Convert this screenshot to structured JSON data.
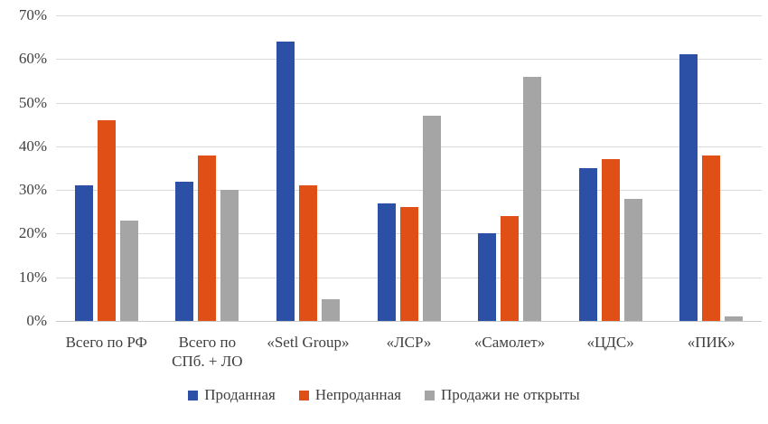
{
  "chart_data": {
    "type": "bar",
    "title": "",
    "xlabel": "",
    "ylabel": "",
    "ylim": [
      0,
      70
    ],
    "grid": true,
    "legend_position": "bottom",
    "y_tick_labels": [
      "70%",
      "60%",
      "50%",
      "40%",
      "30%",
      "20%",
      "10%",
      "0%"
    ],
    "categories": [
      "Всего по РФ",
      "Всего по\nСПб. + ЛО",
      "«Setl Group»",
      "«ЛСР»",
      "«Самолет»",
      "«ЦДС»",
      "«ПИК»"
    ],
    "series": [
      {
        "name": "Проданная",
        "color": "#2b50a5",
        "values": [
          31,
          32,
          64,
          27,
          20,
          35,
          61
        ]
      },
      {
        "name": "Непроданная",
        "color": "#e04f16",
        "values": [
          46,
          38,
          31,
          26,
          24,
          37,
          38
        ]
      },
      {
        "name": "Продажи не открыты",
        "color": "#a5a5a5",
        "values": [
          23,
          30,
          5,
          47,
          56,
          28,
          1
        ]
      }
    ],
    "colors": {
      "gridline": "#d9d9d9",
      "axis_line": "#c9c9c9",
      "text": "#404040",
      "background": "#ffffff"
    }
  }
}
